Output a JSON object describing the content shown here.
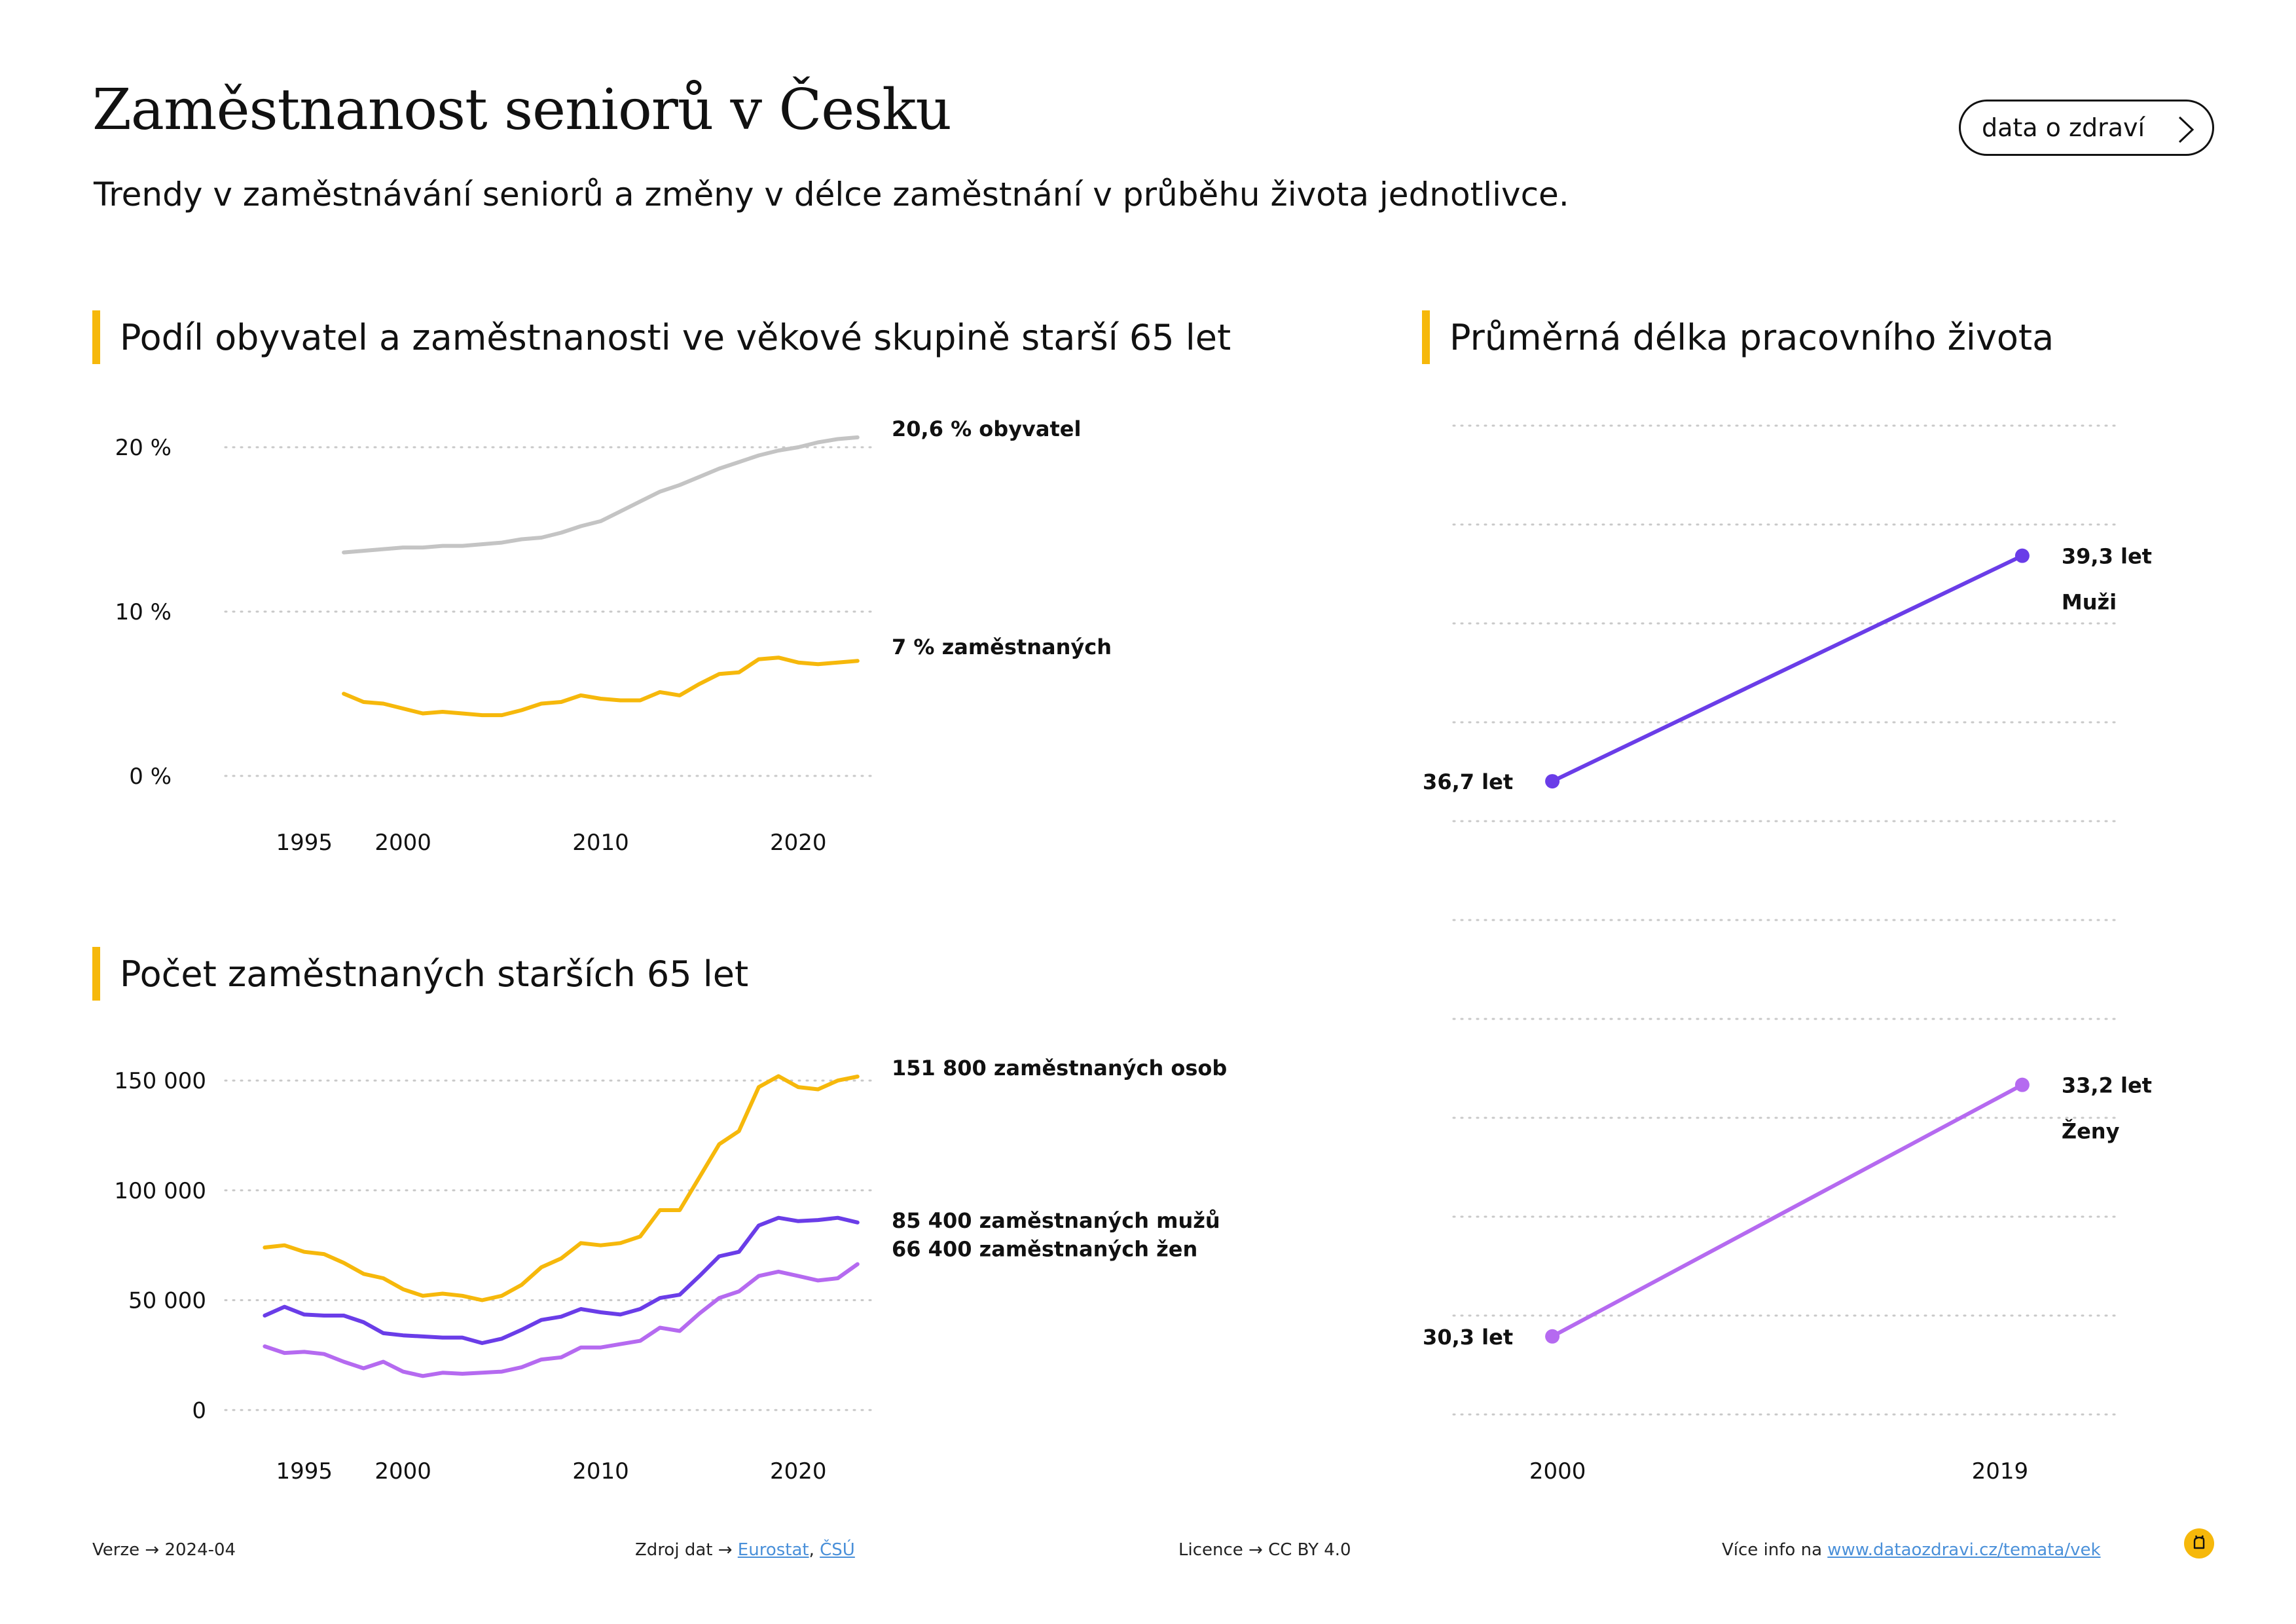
{
  "header": {
    "title": "Zaměstnanost seniorů v Česku",
    "subtitle": "Trendy v zaměstnávání seniorů a změny v délce zaměstnání v průběhu života jednotlivce.",
    "button_label": "data o zdraví",
    "accent_color": "#f6b80b"
  },
  "chart_data": [
    {
      "type": "line",
      "title": "Podíl obyvatel a zaměstnanosti ve věkové skupině starší 65 let",
      "xlim": [
        1991,
        2024
      ],
      "ylim": [
        -1,
        20
      ],
      "x_ticks": [
        "1995",
        "2000",
        "2010",
        "2020"
      ],
      "x_tick_values": [
        1995,
        2000,
        2010,
        2020
      ],
      "y_ticks": [
        "0 %",
        "10 %",
        "20 %"
      ],
      "y_tick_values": [
        0,
        10,
        20
      ],
      "grid": true,
      "series": [
        {
          "label": "20,6 % obyvatel",
          "color": "#c4c4c4",
          "x": [
            1997,
            1998,
            1999,
            2000,
            2001,
            2002,
            2003,
            2004,
            2005,
            2006,
            2007,
            2008,
            2009,
            2010,
            2011,
            2012,
            2013,
            2014,
            2015,
            2016,
            2017,
            2018,
            2019,
            2020,
            2021,
            2022,
            2023
          ],
          "y": [
            13.6,
            13.7,
            13.8,
            13.9,
            13.9,
            14.0,
            14.0,
            14.1,
            14.2,
            14.4,
            14.5,
            14.8,
            15.2,
            15.5,
            16.1,
            16.7,
            17.3,
            17.7,
            18.2,
            18.7,
            19.1,
            19.5,
            19.8,
            20.0,
            20.3,
            20.5,
            20.6
          ]
        },
        {
          "label": "7 % zaměstnaných",
          "color": "#f6b80b",
          "x": [
            1997,
            1998,
            1999,
            2000,
            2001,
            2002,
            2003,
            2004,
            2005,
            2006,
            2007,
            2008,
            2009,
            2010,
            2011,
            2012,
            2013,
            2014,
            2015,
            2016,
            2017,
            2018,
            2019,
            2020,
            2021,
            2022,
            2023
          ],
          "y": [
            5.0,
            4.5,
            4.4,
            4.1,
            3.8,
            3.9,
            3.8,
            3.7,
            3.7,
            4.0,
            4.4,
            4.5,
            4.9,
            4.7,
            4.6,
            4.6,
            5.1,
            4.9,
            5.6,
            6.2,
            6.3,
            7.1,
            7.2,
            6.9,
            6.8,
            6.9,
            7.0
          ]
        }
      ]
    },
    {
      "type": "line",
      "title": "Počet zaměstnaných starších 65 let",
      "xlim": [
        1991,
        2024
      ],
      "ylim": [
        -2000,
        153000
      ],
      "x_ticks": [
        "1995",
        "2000",
        "2010",
        "2020"
      ],
      "x_tick_values": [
        1995,
        2000,
        2010,
        2020
      ],
      "y_ticks": [
        "0",
        "50 000",
        "100 000",
        "150 000"
      ],
      "y_tick_values": [
        0,
        50000,
        100000,
        150000
      ],
      "grid": true,
      "series": [
        {
          "label": "151 800 zaměstnaných osob",
          "color": "#f6b80b",
          "x": [
            1993,
            1994,
            1995,
            1996,
            1997,
            1998,
            1999,
            2000,
            2001,
            2002,
            2003,
            2004,
            2005,
            2006,
            2007,
            2008,
            2009,
            2010,
            2011,
            2012,
            2013,
            2014,
            2015,
            2016,
            2017,
            2018,
            2019,
            2020,
            2021,
            2022,
            2023
          ],
          "y": [
            74000,
            75000,
            72000,
            71000,
            67000,
            62000,
            60000,
            55000,
            52000,
            53000,
            52000,
            50000,
            52000,
            57000,
            65000,
            69000,
            76000,
            75000,
            76000,
            79000,
            91000,
            91000,
            106000,
            121000,
            127000,
            147000,
            152000,
            147000,
            146000,
            150000,
            151800
          ]
        },
        {
          "label": "85 400 zaměstnaných mužů",
          "color": "#6a3de8",
          "x": [
            1993,
            1994,
            1995,
            1996,
            1997,
            1998,
            1999,
            2000,
            2001,
            2002,
            2003,
            2004,
            2005,
            2006,
            2007,
            2008,
            2009,
            2010,
            2011,
            2012,
            2013,
            2014,
            2015,
            2016,
            2017,
            2018,
            2019,
            2020,
            2021,
            2022,
            2023
          ],
          "y": [
            43000,
            47000,
            43500,
            43000,
            43000,
            40000,
            35000,
            34000,
            33500,
            33000,
            33000,
            30500,
            32500,
            36500,
            41000,
            42500,
            46000,
            44500,
            43500,
            46000,
            51000,
            52500,
            61000,
            70000,
            72000,
            84000,
            87500,
            86000,
            86500,
            87500,
            85400
          ]
        },
        {
          "label": "66 400 zaměstnaných žen",
          "color": "#b56af0",
          "x": [
            1993,
            1994,
            1995,
            1996,
            1997,
            1998,
            1999,
            2000,
            2001,
            2002,
            2003,
            2004,
            2005,
            2006,
            2007,
            2008,
            2009,
            2010,
            2011,
            2012,
            2013,
            2014,
            2015,
            2016,
            2017,
            2018,
            2019,
            2020,
            2021,
            2022,
            2023
          ],
          "y": [
            29000,
            26000,
            26500,
            25500,
            22000,
            19000,
            22000,
            17500,
            15500,
            17000,
            16500,
            17000,
            17500,
            19500,
            23000,
            24000,
            28500,
            28500,
            30000,
            31500,
            37500,
            36000,
            44000,
            51000,
            54000,
            61000,
            63000,
            61000,
            59000,
            60000,
            66400
          ]
        }
      ]
    },
    {
      "type": "line",
      "title": "Průměrná délka pracovního života",
      "xlim": [
        1996,
        2023
      ],
      "ylim": [
        29.4,
        40.8
      ],
      "x_ticks": [
        "2000",
        "2019"
      ],
      "x_tick_values": [
        2000,
        2019
      ],
      "grid": true,
      "series": [
        {
          "name": "Muži",
          "color": "#6a3de8",
          "x": [
            2000,
            2019
          ],
          "y": [
            36.7,
            39.3
          ],
          "point_labels": [
            "36,7 let",
            "39,3 let"
          ]
        },
        {
          "name": "Ženy",
          "color": "#b56af0",
          "x": [
            2000,
            2019
          ],
          "y": [
            30.3,
            33.2
          ],
          "point_labels": [
            "30,3 let",
            "33,2 let"
          ]
        }
      ]
    }
  ],
  "footer": {
    "version_label": "Verze",
    "version_value": "2024-04",
    "source_label": "Zdroj dat",
    "source_link_1": "Eurostat",
    "source_sep": ",",
    "source_link_2": "ČSÚ",
    "license_label": "Licence",
    "license_value": "CC BY 4.0",
    "info_label": "Více info na",
    "info_link": "www.dataozdravi.cz/temata/vek",
    "arrow": "→"
  }
}
